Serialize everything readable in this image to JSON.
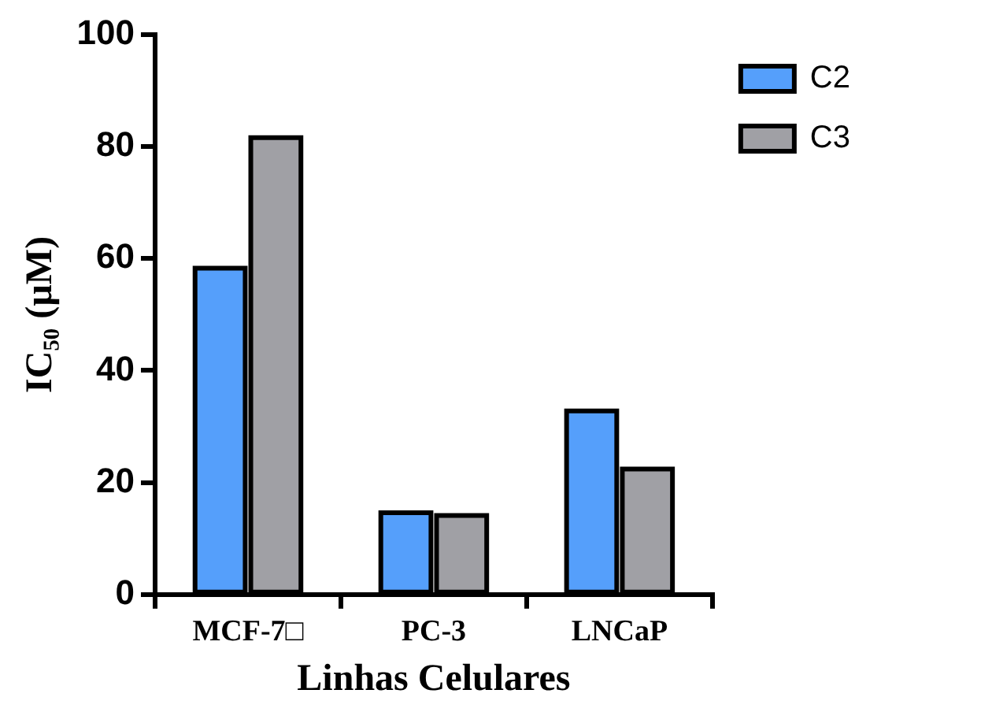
{
  "chart_data": {
    "type": "bar",
    "xlabel": "Linhas Celulares",
    "ylabel": "IC₅₀ (µM)",
    "categories": [
      "MCF-7□",
      "PC-3",
      "LNCaP"
    ],
    "series": [
      {
        "name": "C2",
        "color": "#559ffb",
        "values": [
          58.3,
          14.6,
          32.8
        ]
      },
      {
        "name": "C3",
        "color": "#a0a0a5",
        "values": [
          81.6,
          14.1,
          22.4
        ]
      }
    ],
    "ylim": [
      0,
      100
    ],
    "yticks": [
      0,
      20,
      40,
      60,
      80,
      100
    ],
    "grid": false,
    "legend": "top right"
  }
}
